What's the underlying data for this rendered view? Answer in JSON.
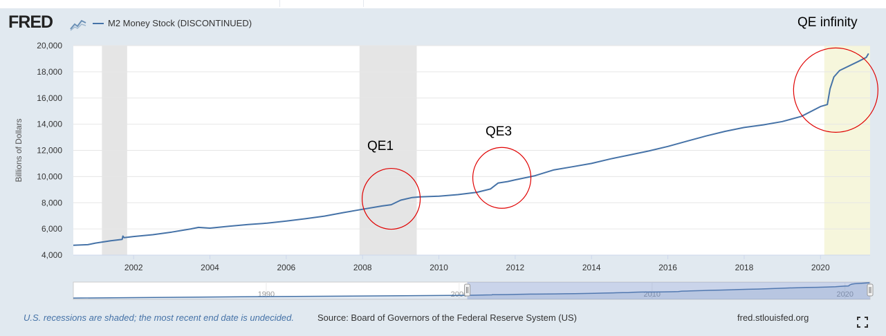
{
  "header": {
    "logo": "FRED",
    "series_name": "M2 Money Stock (DISCONTINUED)"
  },
  "chart_data": {
    "type": "line",
    "series": [
      {
        "name": "M2 Money Stock (DISCONTINUED)",
        "color": "#4572a7",
        "points": [
          [
            2000.42,
            4750
          ],
          [
            2000.8,
            4800
          ],
          [
            2001.0,
            4920
          ],
          [
            2001.4,
            5100
          ],
          [
            2001.7,
            5200
          ],
          [
            2001.72,
            5450
          ],
          [
            2001.75,
            5330
          ],
          [
            2002.0,
            5420
          ],
          [
            2002.5,
            5560
          ],
          [
            2003.0,
            5760
          ],
          [
            2003.5,
            6000
          ],
          [
            2003.7,
            6120
          ],
          [
            2004.0,
            6060
          ],
          [
            2004.5,
            6200
          ],
          [
            2005.0,
            6340
          ],
          [
            2005.5,
            6440
          ],
          [
            2006.0,
            6600
          ],
          [
            2006.5,
            6780
          ],
          [
            2007.0,
            6980
          ],
          [
            2007.5,
            7250
          ],
          [
            2008.0,
            7500
          ],
          [
            2008.5,
            7750
          ],
          [
            2008.75,
            7850
          ],
          [
            2009.0,
            8200
          ],
          [
            2009.3,
            8400
          ],
          [
            2009.5,
            8450
          ],
          [
            2010.0,
            8500
          ],
          [
            2010.5,
            8620
          ],
          [
            2011.0,
            8800
          ],
          [
            2011.35,
            9050
          ],
          [
            2011.55,
            9500
          ],
          [
            2011.8,
            9620
          ],
          [
            2012.0,
            9750
          ],
          [
            2012.5,
            10050
          ],
          [
            2013.0,
            10500
          ],
          [
            2013.5,
            10750
          ],
          [
            2014.0,
            11000
          ],
          [
            2014.5,
            11350
          ],
          [
            2015.0,
            11650
          ],
          [
            2015.5,
            11950
          ],
          [
            2016.0,
            12300
          ],
          [
            2016.5,
            12700
          ],
          [
            2017.0,
            13100
          ],
          [
            2017.5,
            13450
          ],
          [
            2018.0,
            13750
          ],
          [
            2018.5,
            13950
          ],
          [
            2019.0,
            14200
          ],
          [
            2019.5,
            14600
          ],
          [
            2020.0,
            15350
          ],
          [
            2020.18,
            15500
          ],
          [
            2020.25,
            16700
          ],
          [
            2020.35,
            17600
          ],
          [
            2020.5,
            18100
          ],
          [
            2021.0,
            18800
          ],
          [
            2021.2,
            19100
          ],
          [
            2021.26,
            19400
          ]
        ]
      }
    ],
    "ylabel": "Billions of Dollars",
    "xlabel": "",
    "xlim": [
      2000.42,
      2021.3
    ],
    "ylim": [
      4000,
      20000
    ],
    "y_ticks": [
      "4,000",
      "6,000",
      "8,000",
      "10,000",
      "12,000",
      "14,000",
      "16,000",
      "18,000",
      "20,000"
    ],
    "x_ticks": [
      "2002",
      "2004",
      "2006",
      "2008",
      "2010",
      "2012",
      "2014",
      "2016",
      "2018",
      "2020"
    ],
    "recessions": [
      [
        2001.17,
        2001.83
      ],
      [
        2007.92,
        2009.42
      ]
    ],
    "undecided_recession": [
      2020.1,
      2021.3
    ],
    "navigator": {
      "xlim": [
        1980,
        2021.3
      ],
      "ticks": [
        "1990",
        "2000",
        "2010",
        "2020"
      ],
      "selection": [
        2000.42,
        2021.3
      ]
    },
    "annotations": [
      {
        "label": "QE1",
        "circle_center": [
          2008.75,
          8300
        ]
      },
      {
        "label": "QE3",
        "circle_center": [
          2011.65,
          9900
        ]
      },
      {
        "label": "QE infinity",
        "circle_center": [
          2020.4,
          16600
        ]
      }
    ]
  },
  "footer": {
    "recession_note": "U.S. recessions are shaded; the most recent end date is undecided.",
    "source": "Source: Board of Governors of the Federal Reserve System (US)",
    "url": "fred.stlouisfed.org"
  },
  "colors": {
    "line": "#4572a7",
    "recession": "#e5e5e5",
    "undecided": "#f6f6dc",
    "annotation_circle": "#e00000"
  }
}
